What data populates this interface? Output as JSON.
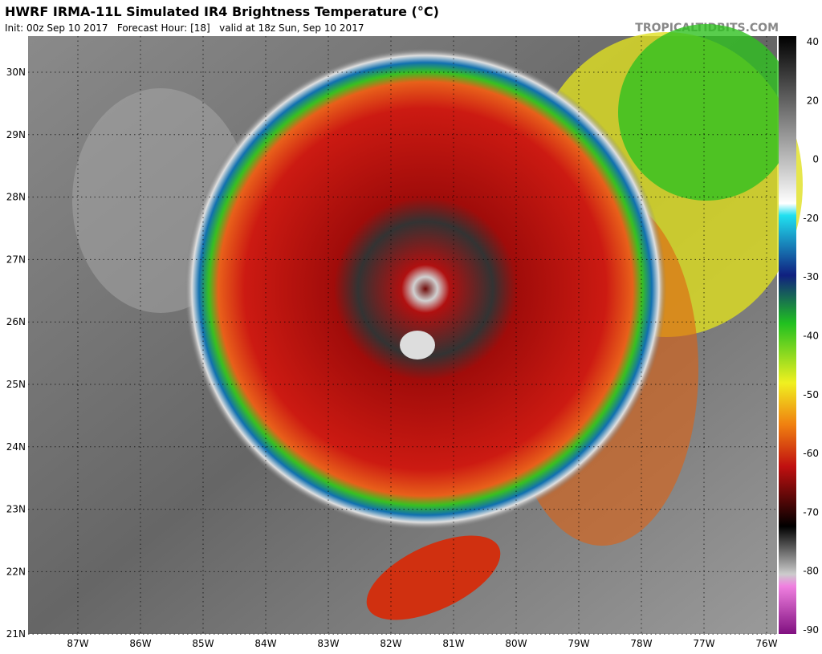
{
  "header": {
    "title": "HWRF IRMA-11L Simulated IR4 Brightness Temperature (°C)",
    "subtitle": "Init: 00z Sep 10 2017   Forecast Hour: [18]   valid at 18z Sun, Sep 10 2017",
    "credit": "TROPICALTIDBITS.COM"
  },
  "map": {
    "latitudes": [
      "30N",
      "29N",
      "28N",
      "27N",
      "26N",
      "25N",
      "24N",
      "23N",
      "22N",
      "21N"
    ],
    "longitudes": [
      "87W",
      "86W",
      "85W",
      "84W",
      "83W",
      "82W",
      "81W",
      "80W",
      "79W",
      "78W",
      "77W",
      "76W"
    ]
  },
  "colorbar": {
    "labels": [
      40,
      20,
      0,
      -20,
      -30,
      -40,
      -50,
      -60,
      -70,
      -80,
      -90
    ]
  }
}
